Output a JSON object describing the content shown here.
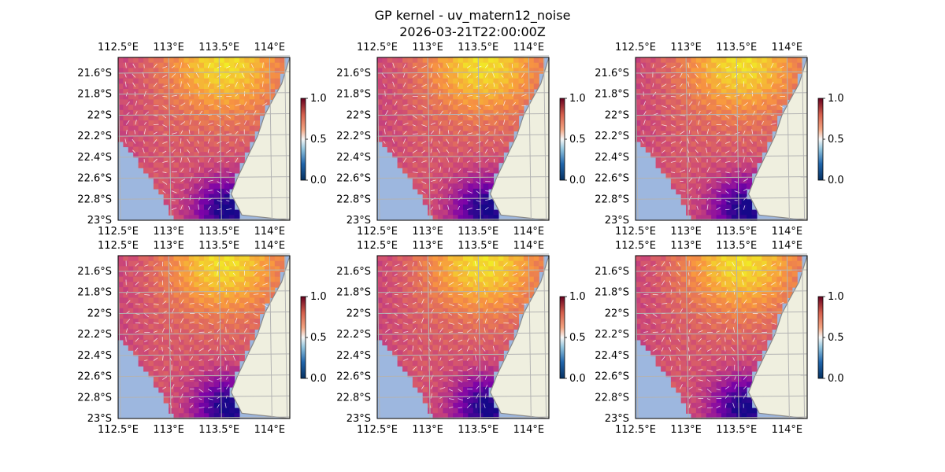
{
  "figure": {
    "title_line1": "GP kernel - uv_matern12_noise",
    "title_line2": "2026-03-21T22:00:00Z"
  },
  "colors": {
    "ocean": "#9db7df",
    "land": "#efefdf",
    "coast": "#888888",
    "grid": "#b3b3b3",
    "frame": "#000000"
  },
  "chart_data": {
    "type": "heatmap",
    "panel_count": 6,
    "layout": "2 rows x 3 columns of map panels",
    "map_extent": {
      "lon": [
        112.5,
        114.2
      ],
      "lat": [
        -23.0,
        -21.45
      ]
    },
    "lon_ticks": [
      "112.5°E",
      "113°E",
      "113.5°E",
      "114°E"
    ],
    "lat_ticks": [
      "21.6°S",
      "21.8°S",
      "22°S",
      "22.2°S",
      "22.4°S",
      "22.6°S",
      "22.8°S",
      "23°S"
    ],
    "colorbar": {
      "ticks": [
        "0.0",
        "0.5",
        "1.0"
      ],
      "range": [
        0.0,
        1.0
      ],
      "colormap": "diverging blue-white-red"
    },
    "heatmap_colormap": "plasma-like (dark navy low, purple mid, orange/yellow high)",
    "overlay": "white velocity arrows (u,v) on field",
    "field_description": "values high (~0.9) in north-east near 113.5°E 21.5°S, medium (~0.6) across central shelf, low (~0.1) at south near 113.5°E 22.9°S"
  }
}
